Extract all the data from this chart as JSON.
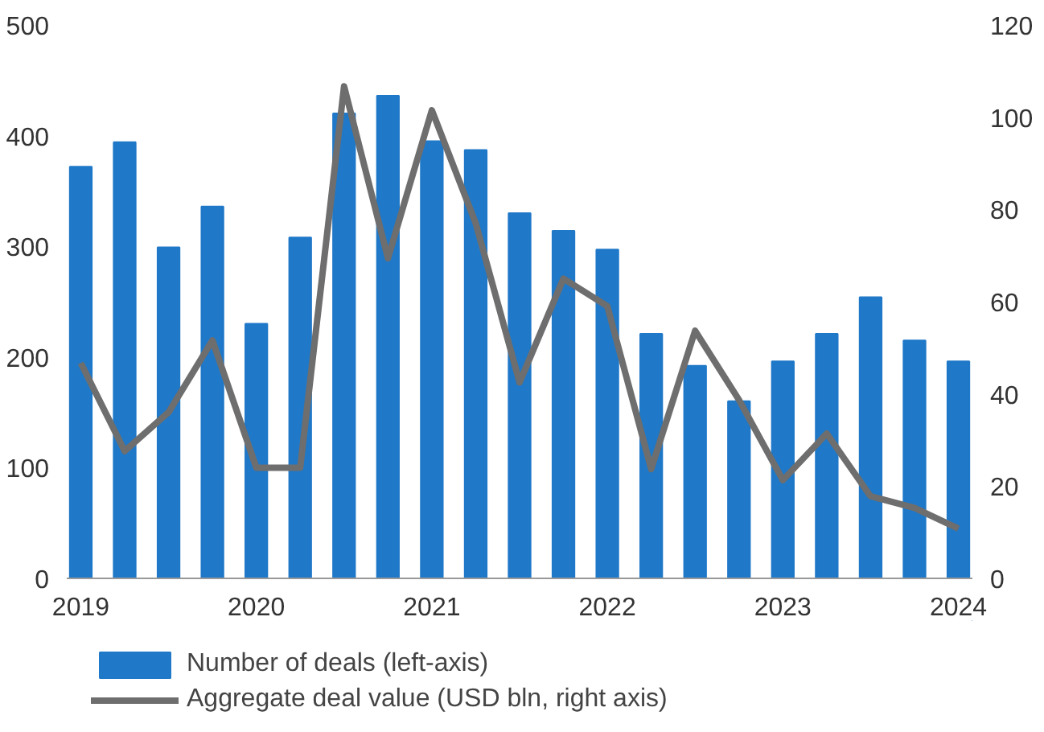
{
  "chart_data": {
    "type": "bar",
    "x": [
      2019,
      2019.25,
      2019.5,
      2019.75,
      2020,
      2020.25,
      2020.5,
      2020.75,
      2021,
      2021.25,
      2021.5,
      2021.75,
      2022,
      2022.25,
      2022.5,
      2022.75,
      2023,
      2023.25,
      2023.5,
      2023.75,
      2024
    ],
    "series": [
      {
        "name": "Number of deals (left-axis)",
        "color": "#1f78c8",
        "values": [
          372,
          394,
          299,
          336,
          230,
          308,
          420,
          436,
          395,
          387,
          330,
          314,
          297,
          221,
          192,
          160,
          196,
          221,
          254,
          215,
          196
        ]
      },
      {
        "name": "Aggregate deal value (USD bln, right axis)",
        "type": "line",
        "axis": "y2",
        "color": "#6e6e6e",
        "values": [
          46.7,
          27.6,
          36,
          51.6,
          24,
          24,
          106.7,
          69.4,
          101.5,
          77,
          42.5,
          65,
          59,
          23.7,
          53.7,
          38.7,
          21.3,
          31.4,
          17.8,
          15.3,
          10.8
        ]
      }
    ],
    "xlim": [
      2018.92,
      2024.08
    ],
    "xticks": [
      2019,
      2020,
      2021,
      2022,
      2023,
      2024
    ],
    "ylim": [
      0,
      500
    ],
    "yticks": [
      0,
      100,
      200,
      300,
      400,
      500
    ],
    "y2lim": [
      0,
      120
    ],
    "y2ticks": [
      0,
      20,
      40,
      60,
      80,
      100,
      120
    ],
    "grid": false,
    "legend": "bottom",
    "marker": "none",
    "line_style": "solid"
  }
}
